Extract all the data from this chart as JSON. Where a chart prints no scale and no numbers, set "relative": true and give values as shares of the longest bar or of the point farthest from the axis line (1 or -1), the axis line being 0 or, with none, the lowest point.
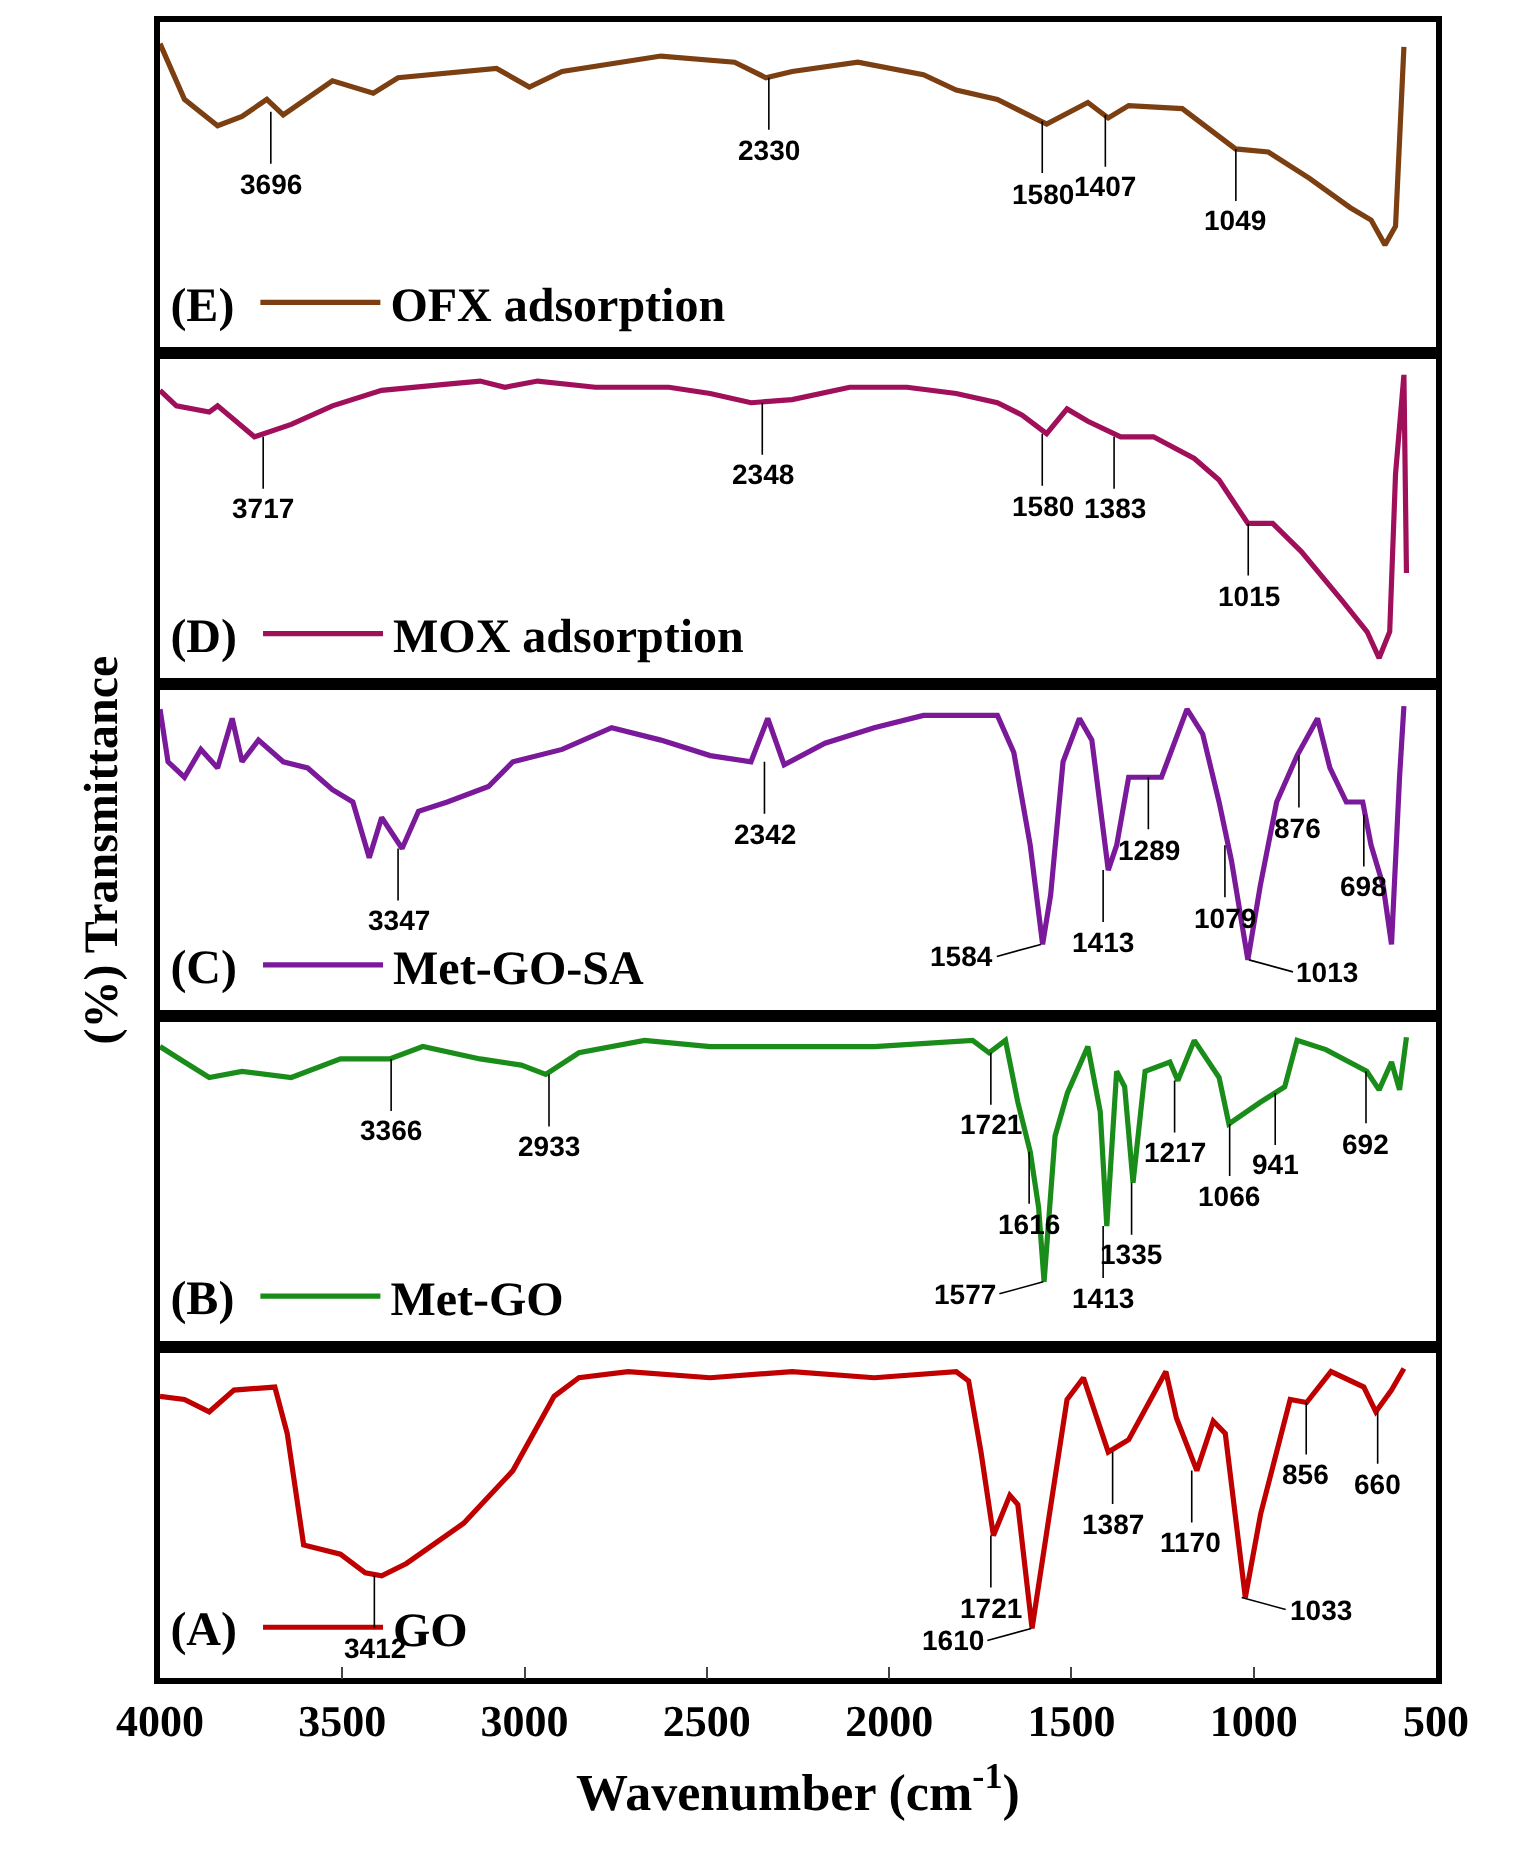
{
  "chart_data": [
    {
      "type": "line",
      "relative": true,
      "xlim": [
        4000,
        500
      ],
      "tick_labels": false,
      "legend": "bottom left",
      "legend_title": "(E)",
      "grid": false,
      "series": [
        {
          "name": "OFX adsorption",
          "color": "#7b3f12",
          "x": [
            4000,
            3933,
            3842,
            3775,
            3707,
            3662,
            3527,
            3415,
            3347,
            3077,
            2987,
            2897,
            2626,
            2424,
            2338,
            2266,
            2086,
            1906,
            1816,
            1703,
            1568,
            1455,
            1399,
            1343,
            1196,
            1050,
            960,
            847,
            735,
            678,
            640,
            611,
            588
          ],
          "values": [
            1.0,
            0.82,
            0.735,
            0.765,
            0.82,
            0.77,
            0.88,
            0.84,
            0.89,
            0.92,
            0.86,
            0.91,
            0.96,
            0.94,
            0.89,
            0.91,
            0.94,
            0.9,
            0.85,
            0.82,
            0.74,
            0.81,
            0.76,
            0.8,
            0.79,
            0.66,
            0.65,
            0.565,
            0.47,
            0.43,
            0.35,
            0.41,
            0.99
          ]
        }
      ],
      "annotations": [
        {
          "text": "3696",
          "x": 3696,
          "y": 0.78
        },
        {
          "text": "2330",
          "x": 2330,
          "y": 0.89
        },
        {
          "text": "1580",
          "x": 1580,
          "y": 0.75
        },
        {
          "text": "1407",
          "x": 1407,
          "y": 0.77
        },
        {
          "text": "1049",
          "x": 1049,
          "y": 0.66
        }
      ]
    },
    {
      "type": "line",
      "relative": true,
      "xlim": [
        4000,
        500
      ],
      "tick_labels": false,
      "legend": "bottom left",
      "legend_title": "(D)",
      "grid": false,
      "series": [
        {
          "name": "MOX adsorption",
          "color": "#a0105a",
          "x": [
            4000,
            3955,
            3865,
            3842,
            3741,
            3640,
            3527,
            3392,
            3212,
            3122,
            3054,
            2964,
            2806,
            2604,
            2491,
            2379,
            2266,
            2108,
            1951,
            1816,
            1703,
            1635,
            1568,
            1512,
            1455,
            1365,
            1275,
            1163,
            1095,
            1016,
            948,
            870,
            757,
            689,
            656,
            627,
            611,
            588,
            581
          ],
          "values": [
            0.95,
            0.9,
            0.88,
            0.9,
            0.8,
            0.84,
            0.9,
            0.95,
            0.97,
            0.98,
            0.96,
            0.98,
            0.96,
            0.96,
            0.94,
            0.91,
            0.92,
            0.96,
            0.96,
            0.94,
            0.91,
            0.87,
            0.81,
            0.89,
            0.85,
            0.8,
            0.8,
            0.73,
            0.66,
            0.52,
            0.52,
            0.43,
            0.27,
            0.17,
            0.085,
            0.17,
            0.68,
            1.0,
            0.36
          ]
        }
      ],
      "annotations": [
        {
          "text": "3717",
          "x": 3717,
          "y": 0.8
        },
        {
          "text": "2348",
          "x": 2348,
          "y": 0.91
        },
        {
          "text": "1580",
          "x": 1580,
          "y": 0.81
        },
        {
          "text": "1383",
          "x": 1383,
          "y": 0.8
        },
        {
          "text": "1015",
          "x": 1015,
          "y": 0.52
        }
      ]
    },
    {
      "type": "line",
      "relative": true,
      "xlim": [
        4000,
        500
      ],
      "tick_labels": false,
      "legend": "bottom left",
      "legend_title": "(C)",
      "grid": false,
      "ylabel": "(%) Transmittance",
      "series": [
        {
          "name": "Met-GO-SA",
          "color": "#7a1a9a",
          "x": [
            4000,
            3978,
            3933,
            3888,
            3842,
            3802,
            3775,
            3730,
            3662,
            3595,
            3527,
            3471,
            3426,
            3392,
            3336,
            3291,
            3212,
            3099,
            3032,
            2897,
            2761,
            2626,
            2491,
            2379,
            2333,
            2288,
            2176,
            2041,
            1906,
            1816,
            1703,
            1658,
            1613,
            1579,
            1557,
            1523,
            1478,
            1444,
            1399,
            1376,
            1343,
            1253,
            1183,
            1140,
            1095,
            1061,
            1016,
            982,
            937,
            881,
            825,
            791,
            746,
            701,
            678,
            645,
            622,
            600,
            588
          ],
          "values": [
            0.99,
            0.82,
            0.77,
            0.86,
            0.8,
            0.96,
            0.82,
            0.89,
            0.82,
            0.8,
            0.73,
            0.69,
            0.51,
            0.64,
            0.54,
            0.66,
            0.69,
            0.74,
            0.82,
            0.86,
            0.93,
            0.89,
            0.84,
            0.82,
            0.96,
            0.81,
            0.88,
            0.93,
            0.97,
            0.97,
            0.97,
            0.85,
            0.55,
            0.23,
            0.39,
            0.82,
            0.96,
            0.89,
            0.47,
            0.55,
            0.77,
            0.77,
            0.99,
            0.91,
            0.69,
            0.5,
            0.18,
            0.42,
            0.69,
            0.84,
            0.96,
            0.8,
            0.69,
            0.69,
            0.55,
            0.42,
            0.23,
            0.77,
            1.0
          ]
        }
      ],
      "annotations": [
        {
          "text": "3347",
          "x": 3347,
          "y": 0.54
        },
        {
          "text": "2342",
          "x": 2342,
          "y": 0.82
        },
        {
          "text": "1584",
          "x": 1584,
          "y": 0.23
        },
        {
          "text": "1413",
          "x": 1413,
          "y": 0.47
        },
        {
          "text": "1289",
          "x": 1289,
          "y": 0.77
        },
        {
          "text": "1079",
          "x": 1079,
          "y": 0.55
        },
        {
          "text": "1013",
          "x": 1013,
          "y": 0.18
        },
        {
          "text": "876",
          "x": 876,
          "y": 0.84
        },
        {
          "text": "698",
          "x": 698,
          "y": 0.65
        }
      ]
    },
    {
      "type": "line",
      "relative": true,
      "xlim": [
        4000,
        500
      ],
      "tick_labels": false,
      "legend": "bottom left",
      "legend_title": "(B)",
      "grid": false,
      "series": [
        {
          "name": "Met-GO",
          "color": "#1a8c1a",
          "x": [
            4000,
            3933,
            3865,
            3775,
            3640,
            3505,
            3370,
            3279,
            3122,
            3009,
            2942,
            2851,
            2671,
            2491,
            2266,
            2041,
            1771,
            1726,
            1681,
            1647,
            1613,
            1590,
            1575,
            1545,
            1511,
            1455,
            1421,
            1403,
            1376,
            1354,
            1331,
            1298,
            1230,
            1208,
            1163,
            1095,
            1068,
            982,
            915,
            881,
            802,
            690,
            656,
            622,
            600,
            581
          ],
          "values": [
            0.97,
            0.92,
            0.87,
            0.89,
            0.87,
            0.93,
            0.93,
            0.97,
            0.93,
            0.91,
            0.88,
            0.95,
            0.99,
            0.97,
            0.97,
            0.97,
            0.99,
            0.95,
            0.99,
            0.79,
            0.63,
            0.45,
            0.21,
            0.68,
            0.82,
            0.97,
            0.76,
            0.39,
            0.89,
            0.84,
            0.53,
            0.89,
            0.92,
            0.86,
            0.99,
            0.87,
            0.72,
            0.79,
            0.84,
            0.99,
            0.96,
            0.89,
            0.83,
            0.92,
            0.83,
            1.0
          ]
        }
      ],
      "annotations": [
        {
          "text": "3366",
          "x": 3366,
          "y": 0.93
        },
        {
          "text": "2933",
          "x": 2933,
          "y": 0.88
        },
        {
          "text": "1721",
          "x": 1721,
          "y": 0.95
        },
        {
          "text": "1616",
          "x": 1616,
          "y": 0.63
        },
        {
          "text": "1577",
          "x": 1577,
          "y": 0.21
        },
        {
          "text": "1413",
          "x": 1413,
          "y": 0.39
        },
        {
          "text": "1335",
          "x": 1335,
          "y": 0.53
        },
        {
          "text": "1217",
          "x": 1217,
          "y": 0.86
        },
        {
          "text": "1066",
          "x": 1066,
          "y": 0.72
        },
        {
          "text": "941",
          "x": 941,
          "y": 0.82
        },
        {
          "text": "692",
          "x": 692,
          "y": 0.89
        }
      ]
    },
    {
      "type": "line",
      "relative": true,
      "xlim": [
        4000,
        500
      ],
      "xticks": [
        4000,
        3500,
        3000,
        2500,
        2000,
        1500,
        1000,
        500
      ],
      "tick_labels": "x",
      "legend": "bottom left",
      "legend_title": "(A)",
      "grid": false,
      "xlabel": "Wavenumber (cm$^{-1}$)",
      "series": [
        {
          "name": "GO",
          "color": "#c00000",
          "x": [
            4000,
            3933,
            3865,
            3797,
            3685,
            3651,
            3606,
            3505,
            3437,
            3392,
            3324,
            3167,
            3032,
            2919,
            2851,
            2716,
            2491,
            2266,
            2041,
            1816,
            1782,
            1748,
            1714,
            1669,
            1647,
            1608,
            1568,
            1512,
            1467,
            1399,
            1343,
            1241,
            1212,
            1156,
            1111,
            1078,
            1023,
            981,
            900,
            855,
            788,
            698,
            665,
            622,
            588
          ],
          "values": [
            0.91,
            0.9,
            0.86,
            0.93,
            0.94,
            0.79,
            0.43,
            0.4,
            0.34,
            0.33,
            0.37,
            0.5,
            0.67,
            0.91,
            0.97,
            0.99,
            0.97,
            0.99,
            0.97,
            0.99,
            0.96,
            0.73,
            0.46,
            0.59,
            0.56,
            0.16,
            0.47,
            0.9,
            0.97,
            0.73,
            0.77,
            0.99,
            0.84,
            0.67,
            0.83,
            0.79,
            0.26,
            0.53,
            0.9,
            0.89,
            0.99,
            0.94,
            0.86,
            0.93,
            1.0
          ]
        }
      ],
      "annotations": [
        {
          "text": "3412",
          "x": 3412,
          "y": 0.33
        },
        {
          "text": "1721",
          "x": 1721,
          "y": 0.46
        },
        {
          "text": "1610",
          "x": 1610,
          "y": 0.16
        },
        {
          "text": "1387",
          "x": 1387,
          "y": 0.73
        },
        {
          "text": "1170",
          "x": 1170,
          "y": 0.67
        },
        {
          "text": "1033",
          "x": 1033,
          "y": 0.26
        },
        {
          "text": "856",
          "x": 856,
          "y": 0.89
        },
        {
          "text": "660",
          "x": 660,
          "y": 0.86
        }
      ]
    }
  ]
}
